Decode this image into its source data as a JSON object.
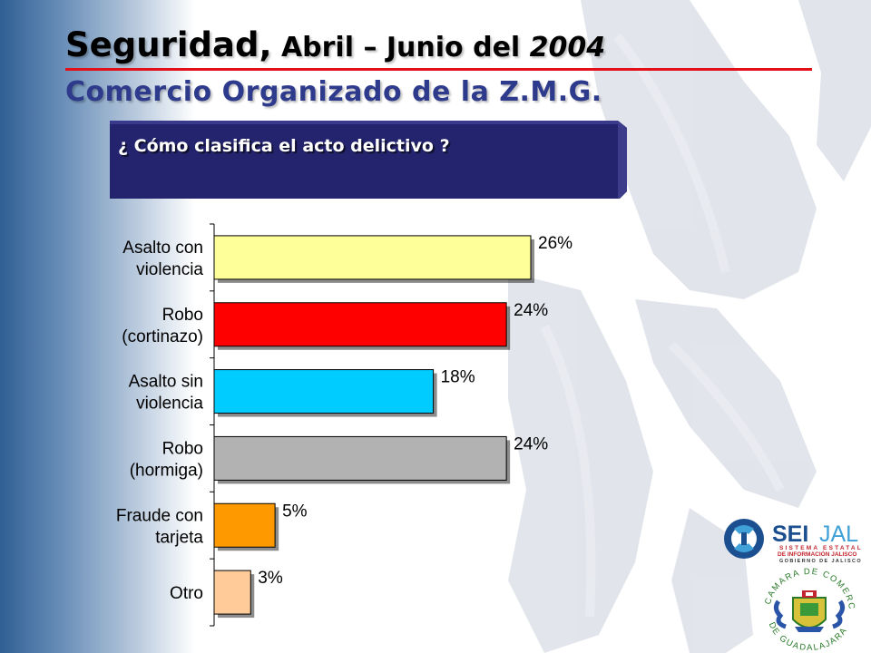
{
  "title": {
    "main": "Seguridad",
    "comma": ",",
    "sub": " Abril – Junio del ",
    "year": "2004",
    "line2": "Comercio Organizado de la Z.M.G."
  },
  "question": "¿ Cómo clasifica el acto delictivo ?",
  "chart_data": {
    "type": "bar",
    "orientation": "horizontal",
    "categories": [
      [
        "Asalto con",
        "violencia"
      ],
      [
        "Robo",
        "(cortinazo)"
      ],
      [
        "Asalto sin",
        "violencia"
      ],
      [
        "Robo",
        "(hormiga)"
      ],
      [
        "Fraude con",
        "tarjeta"
      ],
      [
        "Otro"
      ]
    ],
    "values": [
      26,
      24,
      18,
      24,
      5,
      3
    ],
    "value_labels": [
      "26%",
      "24%",
      "18%",
      "24%",
      "5%",
      "3%"
    ],
    "colors": [
      "#ffff99",
      "#ff0000",
      "#00ccff",
      "#b2b2b2",
      "#ff9900",
      "#ffcc99"
    ],
    "xlim": [
      0,
      30
    ],
    "grid": false,
    "legend": "none"
  },
  "logos": {
    "seijal": {
      "name_dark": "SEI",
      "name_light": "JAL",
      "line1": "SISTEMA ESTATAL",
      "line2": "DE INFORMACIÓN JALISCO",
      "line3": "GOBIERNO DE JALISCO"
    },
    "seal": {
      "top_text": "CAMARA DE COMERCIO",
      "bottom_text": "DE GUADALAJARA"
    }
  }
}
